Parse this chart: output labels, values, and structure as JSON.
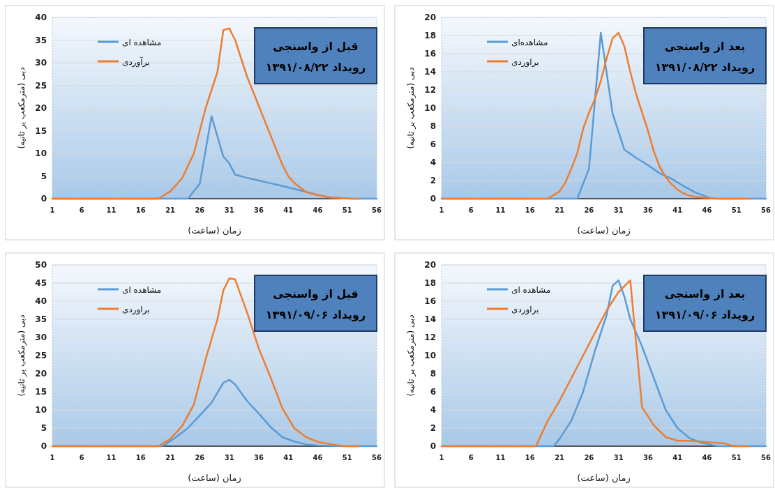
{
  "chart_data": [
    {
      "type": "line",
      "title": "قبل از واسنجی",
      "subtitle": "رویداد ۱۳۹۱/۰۸/۲۲",
      "xlabel": "زمان (ساعت)",
      "ylabel": "دبی (مترمکعب بر ثانیه)",
      "xlim": [
        1,
        56
      ],
      "xticks": [
        1,
        6,
        11,
        16,
        21,
        26,
        31,
        36,
        41,
        46,
        51,
        56
      ],
      "ylim": [
        0,
        40
      ],
      "yticks": [
        0,
        5,
        10,
        15,
        20,
        25,
        30,
        35,
        40
      ],
      "grid": "y",
      "legend": "top left",
      "series": [
        {
          "name": "مشاهده ای",
          "color": "#5b9bd5",
          "x": [
            1,
            24,
            26,
            28,
            30,
            31,
            32,
            34,
            36,
            38,
            40,
            42,
            44,
            46,
            48,
            50,
            52,
            56
          ],
          "values": [
            0,
            0,
            3.3,
            18.2,
            9.3,
            7.8,
            5.3,
            4.6,
            4.0,
            3.4,
            2.8,
            2.2,
            1.5,
            0.8,
            0.3,
            0.1,
            0,
            0
          ]
        },
        {
          "name": "برآوردی",
          "color": "#ed7d31",
          "x": [
            1,
            19,
            21,
            23,
            25,
            27,
            29,
            30,
            31,
            32,
            34,
            36,
            38,
            40,
            41,
            42,
            43,
            44,
            46,
            48,
            50,
            51,
            53
          ],
          "values": [
            0,
            0,
            1.6,
            4.5,
            10,
            20,
            28,
            37.2,
            37.6,
            35,
            27,
            20.5,
            14,
            7.5,
            5,
            3.5,
            2.5,
            1.5,
            0.8,
            0.3,
            0.1,
            0,
            0
          ]
        }
      ]
    },
    {
      "type": "line",
      "title": "بعد  از واسنجی",
      "subtitle": "رویداد ۱۳۹۱/۰۸/۲۲",
      "xlabel": "زمان (ساعت)",
      "ylabel": "دبی (مترمکعب بر ثانیه)",
      "xlim": [
        1,
        56
      ],
      "xticks": [
        1,
        6,
        11,
        16,
        21,
        26,
        31,
        36,
        41,
        46,
        51,
        56
      ],
      "ylim": [
        0,
        20
      ],
      "yticks": [
        0,
        2,
        4,
        6,
        8,
        10,
        12,
        14,
        16,
        18,
        20
      ],
      "grid": "y",
      "legend": "top left",
      "series": [
        {
          "name": "مشاهده‌ای",
          "color": "#5b9bd5",
          "x": [
            1,
            24,
            26,
            28,
            30,
            32,
            34,
            36,
            38,
            40,
            42,
            44,
            46,
            47,
            56
          ],
          "values": [
            0,
            0,
            3.3,
            18.3,
            9.4,
            5.4,
            4.5,
            3.7,
            2.8,
            2.2,
            1.4,
            0.7,
            0.2,
            0,
            0
          ]
        },
        {
          "name": "براوردی",
          "color": "#ed7d31",
          "x": [
            1,
            19,
            21,
            22,
            23,
            24,
            25,
            26,
            27,
            28,
            29,
            30,
            31,
            32,
            33,
            34,
            35,
            36,
            37,
            38,
            39,
            40,
            41,
            42,
            43,
            44,
            46,
            48,
            53
          ],
          "values": [
            0,
            0,
            0.8,
            1.8,
            3.3,
            5,
            7.7,
            9.5,
            11,
            13,
            15.5,
            17.7,
            18.3,
            16.8,
            14,
            11.5,
            9.5,
            7.5,
            5.2,
            3.5,
            2.4,
            1.6,
            1.0,
            0.6,
            0.35,
            0.2,
            0.1,
            0,
            0
          ]
        }
      ]
    },
    {
      "type": "line",
      "title": "قبل از واسنجی",
      "subtitle": "رویداد ۱۳۹۱/۰۹/۰۶",
      "xlabel": "زمان (ساعت)",
      "ylabel": "دبی (مترمکعب بر ثانیه)",
      "xlim": [
        1,
        56
      ],
      "xticks": [
        1,
        6,
        11,
        16,
        21,
        26,
        31,
        36,
        41,
        46,
        51,
        56
      ],
      "ylim": [
        0,
        50
      ],
      "yticks": [
        0,
        5,
        10,
        15,
        20,
        25,
        30,
        35,
        40,
        45,
        50
      ],
      "grid": "y",
      "legend": "top left",
      "series": [
        {
          "name": "مشاهده ای",
          "color": "#5b9bd5",
          "x": [
            1,
            19.5,
            20,
            22,
            24,
            26,
            28,
            30,
            31,
            32,
            34,
            36,
            38,
            40,
            42,
            44,
            46,
            48,
            50,
            56
          ],
          "values": [
            0,
            0,
            0.3,
            2.5,
            5,
            8.5,
            12,
            17.5,
            18.3,
            17,
            12.5,
            9,
            5.3,
            2.5,
            1.3,
            0.5,
            0.2,
            0.1,
            0,
            0
          ]
        },
        {
          "name": "براوردی",
          "color": "#ed7d31",
          "x": [
            1,
            19,
            21,
            23,
            25,
            27,
            29,
            30,
            31,
            32,
            34,
            36,
            38,
            40,
            42,
            44,
            46,
            48,
            50,
            51,
            53
          ],
          "values": [
            0,
            0,
            2,
            5.5,
            11.5,
            24,
            35,
            43,
            46.3,
            46,
            37,
            27,
            19,
            10.5,
            5,
            2.5,
            1.2,
            0.6,
            0.1,
            0,
            0
          ]
        }
      ]
    },
    {
      "type": "line",
      "title": "بعد از واسنجی",
      "subtitle": "رویداد ۱۳۹۱/۰۹/۰۶",
      "xlabel": "زمان (ساعت)",
      "ylabel": "دبی (مترمکعب بر ثانیه)",
      "xlim": [
        1,
        56
      ],
      "xticks": [
        1,
        6,
        11,
        16,
        21,
        26,
        31,
        36,
        41,
        46,
        51,
        56
      ],
      "ylim": [
        0,
        20
      ],
      "yticks": [
        0,
        2,
        4,
        6,
        8,
        10,
        12,
        14,
        16,
        18,
        20
      ],
      "grid": "y",
      "legend": "top left",
      "series": [
        {
          "name": "مشاهده ای",
          "color": "#5b9bd5",
          "x": [
            1,
            20,
            21,
            23,
            25,
            27,
            29,
            30,
            31,
            32,
            33,
            35,
            37,
            39,
            41,
            43,
            45,
            47,
            48,
            56
          ],
          "values": [
            0,
            0,
            0.8,
            2.8,
            6,
            10.5,
            14.5,
            17.7,
            18.3,
            16.5,
            14,
            11,
            7.5,
            4,
            2.0,
            0.9,
            0.4,
            0.1,
            0,
            0
          ]
        },
        {
          "name": "براوردی",
          "color": "#ed7d31",
          "x": [
            1,
            17,
            19,
            21,
            23,
            25,
            27,
            29,
            31,
            33,
            35,
            37,
            39,
            41,
            43,
            45,
            47,
            49,
            50,
            51,
            53
          ],
          "values": [
            0,
            0,
            2.8,
            5,
            7.5,
            10,
            12.5,
            15,
            17,
            18.3,
            4.3,
            2.3,
            1.0,
            0.6,
            0.6,
            0.5,
            0.4,
            0.3,
            0.1,
            0,
            0
          ]
        }
      ]
    }
  ]
}
